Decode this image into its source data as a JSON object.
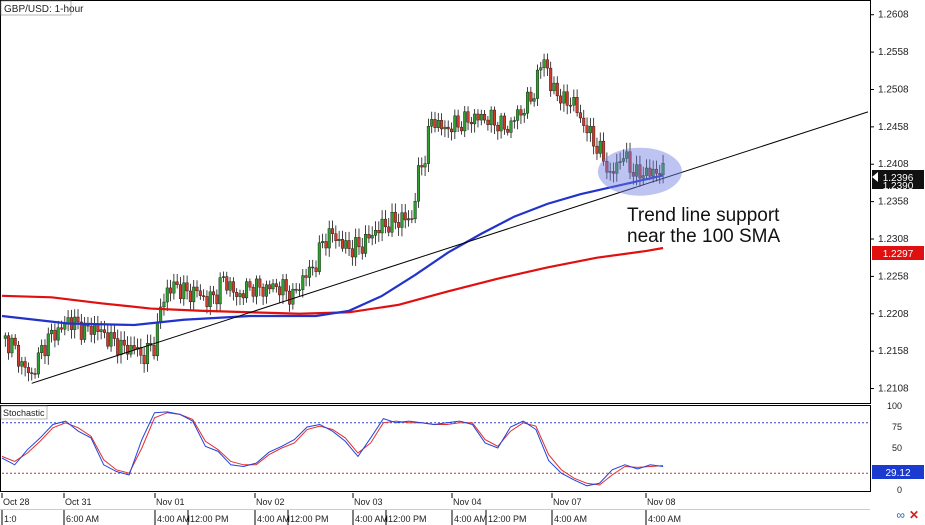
{
  "header": {
    "main_title": "GBP/USD: 1-hour",
    "osc_title": "Stochastic"
  },
  "annotation": {
    "line1": "Trend line support",
    "line2": "near the 100 SMA"
  },
  "price_tags": {
    "current": "1.2396",
    "current_under": "1.2390",
    "sma200": "1.2297",
    "stoch": "29.12"
  },
  "colors": {
    "bull": "#2e9e2e",
    "bear": "#d23a2a",
    "sma100": "#2233cc",
    "sma200": "#e01010",
    "trendline": "#000000",
    "highlight": "#6c7de0",
    "stoch_k": "#2244dd",
    "stoch_d": "#e03030",
    "level_top": "#3344cc",
    "level_bottom": "#cc3333",
    "tag_dark": "#111111",
    "tag_red": "#e01010",
    "tag_blue": "#1a3ad0"
  },
  "icons": {
    "link": "link-icon",
    "close": "close-icon"
  },
  "chart_data": {
    "type": "candlestick",
    "title": "GBP/USD: 1-hour",
    "ylim": [
      1.209,
      1.2625
    ],
    "y_ticks": [
      "1.2608",
      "1.2558",
      "1.2508",
      "1.2458",
      "1.2408",
      "1.2358",
      "1.2308",
      "1.2258",
      "1.2208",
      "1.2158",
      "1.2108"
    ],
    "date_labels": [
      "Oct 28",
      "Oct 31",
      "Nov 01",
      "Nov 02",
      "Nov 03",
      "Nov 04",
      "Nov 07",
      "Nov 08"
    ],
    "time_labels": [
      "1:0",
      "6:00 AM",
      "4:00 AM",
      "12:00 PM",
      "4:00 AM",
      "12:00 PM",
      "4:00 AM",
      "12:00 PM",
      "4:00 AM",
      "12:00 PM",
      "4:00 AM",
      "4:00 AM"
    ],
    "close_path": [
      [
        0,
        1.2175
      ],
      [
        3,
        1.2168
      ],
      [
        6,
        1.214
      ],
      [
        9,
        1.2125
      ],
      [
        12,
        1.216
      ],
      [
        15,
        1.218
      ],
      [
        18,
        1.2188
      ],
      [
        20,
        1.22
      ],
      [
        22,
        1.2195
      ],
      [
        25,
        1.2185
      ],
      [
        28,
        1.219
      ],
      [
        31,
        1.218
      ],
      [
        34,
        1.217
      ],
      [
        38,
        1.216
      ],
      [
        40,
        1.2165
      ],
      [
        42,
        1.215
      ],
      [
        44,
        1.2158
      ],
      [
        46,
        1.2165
      ],
      [
        48,
        1.2215
      ],
      [
        50,
        1.224
      ],
      [
        53,
        1.2245
      ],
      [
        56,
        1.2235
      ],
      [
        59,
        1.2238
      ],
      [
        62,
        1.2225
      ],
      [
        65,
        1.2235
      ],
      [
        67,
        1.2255
      ],
      [
        69,
        1.2245
      ],
      [
        71,
        1.223
      ],
      [
        73,
        1.2238
      ],
      [
        76,
        1.2245
      ],
      [
        79,
        1.224
      ],
      [
        82,
        1.2245
      ],
      [
        85,
        1.2242
      ],
      [
        88,
        1.223
      ],
      [
        91,
        1.2255
      ],
      [
        93,
        1.2265
      ],
      [
        95,
        1.2275
      ],
      [
        97,
        1.2305
      ],
      [
        100,
        1.2315
      ],
      [
        103,
        1.23
      ],
      [
        106,
        1.2295
      ],
      [
        109,
        1.23
      ],
      [
        112,
        1.2315
      ],
      [
        115,
        1.2325
      ],
      [
        118,
        1.233
      ],
      [
        121,
        1.2335
      ],
      [
        124,
        1.2335
      ],
      [
        126,
        1.2395
      ],
      [
        128,
        1.242
      ],
      [
        130,
        1.247
      ],
      [
        132,
        1.246
      ],
      [
        134,
        1.2455
      ],
      [
        137,
        1.246
      ],
      [
        140,
        1.2465
      ],
      [
        143,
        1.247
      ],
      [
        146,
        1.247
      ],
      [
        149,
        1.2465
      ],
      [
        151,
        1.246
      ],
      [
        153,
        1.2455
      ],
      [
        155,
        1.247
      ],
      [
        157,
        1.2478
      ],
      [
        159,
        1.249
      ],
      [
        161,
        1.2505
      ],
      [
        163,
        1.254
      ],
      [
        164,
        1.255
      ],
      [
        165,
        1.2535
      ],
      [
        166,
        1.251
      ],
      [
        168,
        1.2505
      ],
      [
        170,
        1.249
      ],
      [
        172,
        1.2495
      ],
      [
        174,
        1.248
      ],
      [
        176,
        1.246
      ],
      [
        178,
        1.2448
      ],
      [
        180,
        1.243
      ],
      [
        182,
        1.2418
      ],
      [
        184,
        1.239
      ],
      [
        186,
        1.2408
      ],
      [
        188,
        1.242
      ],
      [
        190,
        1.2405
      ],
      [
        192,
        1.2393
      ],
      [
        194,
        1.2398
      ],
      [
        196,
        1.2395
      ],
      [
        198,
        1.24
      ],
      [
        200,
        1.2396
      ]
    ],
    "sma100": [
      [
        0,
        1.2205
      ],
      [
        20,
        1.2195
      ],
      [
        40,
        1.2193
      ],
      [
        55,
        1.22
      ],
      [
        75,
        1.2205
      ],
      [
        95,
        1.2205
      ],
      [
        105,
        1.2212
      ],
      [
        115,
        1.2232
      ],
      [
        125,
        1.226
      ],
      [
        135,
        1.229
      ],
      [
        145,
        1.2315
      ],
      [
        155,
        1.2338
      ],
      [
        165,
        1.2355
      ],
      [
        175,
        1.2368
      ],
      [
        185,
        1.2378
      ],
      [
        195,
        1.2388
      ],
      [
        200,
        1.2393
      ]
    ],
    "sma200": [
      [
        0,
        1.2232
      ],
      [
        15,
        1.223
      ],
      [
        30,
        1.2222
      ],
      [
        45,
        1.2215
      ],
      [
        60,
        1.2212
      ],
      [
        75,
        1.221
      ],
      [
        90,
        1.2208
      ],
      [
        105,
        1.221
      ],
      [
        120,
        1.222
      ],
      [
        135,
        1.2238
      ],
      [
        150,
        1.2255
      ],
      [
        165,
        1.227
      ],
      [
        180,
        1.2283
      ],
      [
        195,
        1.2292
      ],
      [
        200,
        1.2296
      ]
    ],
    "trendline": [
      [
        9,
        1.2115
      ],
      [
        262,
        1.2478
      ]
    ],
    "x_max": 262,
    "stochastic": {
      "levels": [
        80,
        20
      ],
      "ticks": [
        "100",
        "75",
        "50",
        "25",
        "0"
      ],
      "ylim": [
        0,
        100
      ],
      "k": [
        [
          0,
          38
        ],
        [
          4,
          30
        ],
        [
          8,
          48
        ],
        [
          12,
          62
        ],
        [
          16,
          78
        ],
        [
          20,
          82
        ],
        [
          24,
          70
        ],
        [
          28,
          62
        ],
        [
          32,
          30
        ],
        [
          36,
          22
        ],
        [
          40,
          18
        ],
        [
          44,
          60
        ],
        [
          48,
          92
        ],
        [
          52,
          93
        ],
        [
          56,
          90
        ],
        [
          60,
          82
        ],
        [
          64,
          52
        ],
        [
          68,
          46
        ],
        [
          72,
          30
        ],
        [
          76,
          28
        ],
        [
          80,
          32
        ],
        [
          84,
          45
        ],
        [
          88,
          52
        ],
        [
          92,
          60
        ],
        [
          96,
          75
        ],
        [
          100,
          78
        ],
        [
          104,
          70
        ],
        [
          108,
          58
        ],
        [
          112,
          40
        ],
        [
          116,
          62
        ],
        [
          120,
          85
        ],
        [
          124,
          80
        ],
        [
          128,
          82
        ],
        [
          132,
          80
        ],
        [
          136,
          78
        ],
        [
          140,
          80
        ],
        [
          144,
          82
        ],
        [
          148,
          78
        ],
        [
          152,
          56
        ],
        [
          156,
          50
        ],
        [
          160,
          75
        ],
        [
          164,
          82
        ],
        [
          168,
          72
        ],
        [
          172,
          35
        ],
        [
          176,
          20
        ],
        [
          180,
          12
        ],
        [
          184,
          5
        ],
        [
          188,
          8
        ],
        [
          192,
          24
        ],
        [
          196,
          30
        ],
        [
          200,
          25
        ],
        [
          204,
          30
        ],
        [
          208,
          28
        ]
      ],
      "d": [
        [
          0,
          40
        ],
        [
          4,
          34
        ],
        [
          8,
          44
        ],
        [
          12,
          58
        ],
        [
          16,
          74
        ],
        [
          20,
          80
        ],
        [
          24,
          74
        ],
        [
          28,
          64
        ],
        [
          32,
          36
        ],
        [
          36,
          24
        ],
        [
          40,
          20
        ],
        [
          44,
          50
        ],
        [
          48,
          86
        ],
        [
          52,
          92
        ],
        [
          56,
          90
        ],
        [
          60,
          84
        ],
        [
          64,
          58
        ],
        [
          68,
          48
        ],
        [
          72,
          34
        ],
        [
          76,
          30
        ],
        [
          80,
          30
        ],
        [
          84,
          42
        ],
        [
          88,
          50
        ],
        [
          92,
          56
        ],
        [
          96,
          72
        ],
        [
          100,
          76
        ],
        [
          104,
          72
        ],
        [
          108,
          62
        ],
        [
          112,
          44
        ],
        [
          116,
          56
        ],
        [
          120,
          80
        ],
        [
          124,
          82
        ],
        [
          128,
          80
        ],
        [
          132,
          80
        ],
        [
          136,
          78
        ],
        [
          140,
          78
        ],
        [
          144,
          80
        ],
        [
          148,
          80
        ],
        [
          152,
          60
        ],
        [
          156,
          52
        ],
        [
          160,
          70
        ],
        [
          164,
          80
        ],
        [
          168,
          76
        ],
        [
          172,
          42
        ],
        [
          176,
          24
        ],
        [
          180,
          14
        ],
        [
          184,
          8
        ],
        [
          188,
          6
        ],
        [
          192,
          18
        ],
        [
          196,
          28
        ],
        [
          200,
          27
        ],
        [
          204,
          28
        ],
        [
          208,
          29
        ]
      ]
    },
    "xlabel": "",
    "ylabel": ""
  }
}
